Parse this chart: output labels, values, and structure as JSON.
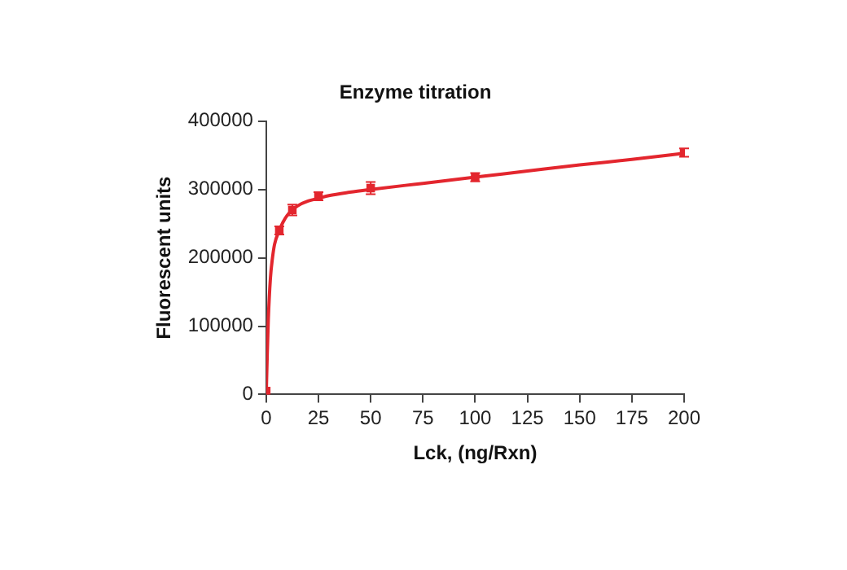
{
  "chart_data": {
    "type": "scatter",
    "title": "Enzyme titration",
    "xlabel": "Lck, (ng/Rxn)",
    "ylabel": "Fluorescent units",
    "xlim": [
      0,
      200
    ],
    "xticks": [
      0,
      25,
      50,
      75,
      100,
      125,
      150,
      175,
      200
    ],
    "ylim": [
      0,
      400000
    ],
    "yticks": [
      0,
      100000,
      200000,
      300000,
      400000
    ],
    "grid": false,
    "legend": false,
    "marker": "square",
    "series": [
      {
        "color": "#e3262e",
        "x": [
          0,
          6.25,
          12.5,
          25,
          50,
          100,
          200
        ],
        "values": [
          5000,
          240000,
          270000,
          290000,
          302000,
          318000,
          354000
        ],
        "errors": [
          null,
          6000,
          8000,
          6000,
          9000,
          6000,
          6000
        ]
      },
      {
        "type": "line",
        "color": "#e3262e",
        "marker": "none",
        "line_style": "solid",
        "x": [
          0,
          0.5,
          1,
          2,
          3,
          4,
          6.25,
          8,
          10,
          12.5,
          15,
          20,
          25,
          30,
          40,
          50,
          75,
          100,
          125,
          150,
          175,
          200
        ],
        "values": [
          0,
          60000,
          110000,
          170000,
          200000,
          220000,
          240000,
          252000,
          262000,
          270000,
          276000,
          283000,
          287000,
          291000,
          296000,
          300000,
          309000,
          318000,
          327000,
          336000,
          344000,
          353000
        ]
      }
    ]
  }
}
